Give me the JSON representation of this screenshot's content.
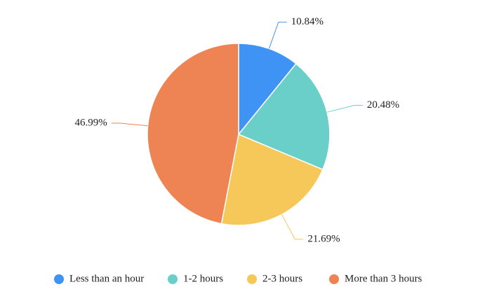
{
  "chart_data": {
    "type": "pie",
    "categories": [
      "Less than an hour",
      "1-2 hours",
      "2-3 hours",
      "More than 3 hours"
    ],
    "values": [
      10.84,
      20.48,
      21.69,
      46.99
    ],
    "value_labels": [
      "10.84%",
      "20.48%",
      "21.69%",
      "46.99%"
    ],
    "colors": [
      "#3f93f5",
      "#6bcfc9",
      "#f6c85a",
      "#ee8353"
    ],
    "legend": "bottom"
  }
}
